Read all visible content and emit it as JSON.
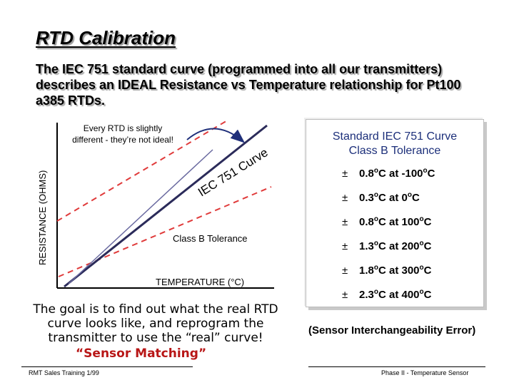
{
  "slide": {
    "title": "RTD Calibration",
    "intro": "The IEC 751 standard curve (programmed into all our transmitters) describes an IDEAL Resistance vs Temperature relationship for Pt100 a385 RTDs."
  },
  "diagram": {
    "note": "Every RTD is slightly different - they’re not ideal!",
    "curve_label": "IEC 751 Curve",
    "tolerance_label": "Class B Tolerance",
    "x_axis_label": "TEMPERATURE (°C)",
    "y_axis_label": "RESISTANCE (OHMS)",
    "colors": {
      "axis": "#000000",
      "ideal_line": "#2b2b5a",
      "tolerance_dash": "#e03b3b",
      "arrow": "#1f2f7a"
    }
  },
  "tolerance_panel": {
    "title": "Standard IEC 751 Curve\nClass B Tolerance",
    "rows": [
      {
        "pm": "±",
        "value": "0.8",
        "at": "at",
        "temp": "-100"
      },
      {
        "pm": "±",
        "value": "0.3",
        "at": "at",
        "temp": "0"
      },
      {
        "pm": "±",
        "value": "0.8",
        "at": "at",
        "temp": "100"
      },
      {
        "pm": "±",
        "value": "1.3",
        "at": "at",
        "temp": "200"
      },
      {
        "pm": "±",
        "value": "1.8",
        "at": "at",
        "temp": "300"
      },
      {
        "pm": "±",
        "value": "2.3",
        "at": "at",
        "temp": "400"
      }
    ],
    "unit_o": "o",
    "unit_c": "C"
  },
  "sensor_error": "(Sensor Interchangeability Error)",
  "goal_text": "The goal is to find out what the real RTD\ncurve looks like, and reprogram the\ntransmitter to use the “real” curve!",
  "matching_text": "“Sensor Matching”",
  "footer": {
    "left": "RMT Sales Training  1/99",
    "right": "Phase II - Temperature Sensor"
  }
}
